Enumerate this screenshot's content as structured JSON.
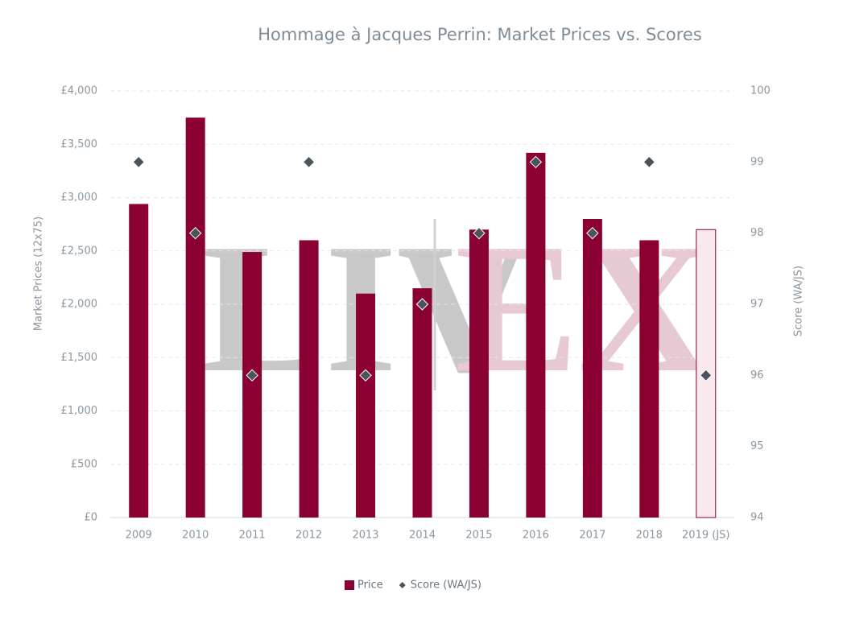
{
  "chart_data": {
    "type": "bar",
    "title": "Hommage à Jacques Perrin: Market Prices vs. Scores",
    "watermark": [
      "LIV",
      "EX"
    ],
    "categories": [
      "2009",
      "2010",
      "2011",
      "2012",
      "2013",
      "2014",
      "2015",
      "2016",
      "2017",
      "2018",
      "2019 (JS)"
    ],
    "ylabel": "Market Prices (12x75)",
    "y2label": "Score (WA/JS)",
    "ylim": [
      0,
      4000
    ],
    "yticks": [
      {
        "value": 0,
        "label": "£0"
      },
      {
        "value": 500,
        "label": "£500"
      },
      {
        "value": 1000,
        "label": "£1,000"
      },
      {
        "value": 1500,
        "label": "£1,500"
      },
      {
        "value": 2000,
        "label": "£2,000"
      },
      {
        "value": 2500,
        "label": "£2,500"
      },
      {
        "value": 3000,
        "label": "£3,000"
      },
      {
        "value": 3500,
        "label": "£3,500"
      },
      {
        "value": 4000,
        "label": "£4,000"
      }
    ],
    "y2lim": [
      94,
      100
    ],
    "y2ticks": [
      94,
      95,
      96,
      97,
      98,
      99,
      100
    ],
    "grid": true,
    "legend": "bottom",
    "series": [
      {
        "name": "Price",
        "type": "bar",
        "color": "#8b0033",
        "colors": [
          "#8b0033",
          "#8b0033",
          "#8b0033",
          "#8b0033",
          "#8b0033",
          "#8b0033",
          "#8b0033",
          "#8b0033",
          "#8b0033",
          "#8b0033",
          "#f9e8ee"
        ],
        "values": [
          2940,
          3750,
          2490,
          2600,
          2100,
          2150,
          2700,
          3420,
          2800,
          2600,
          2700
        ]
      },
      {
        "name": "Score (WA/JS)",
        "type": "scatter",
        "axis": "y2",
        "color": "#4a545c",
        "values": [
          99,
          98,
          96,
          99,
          96,
          97,
          98,
          99,
          98,
          99,
          96
        ]
      }
    ]
  }
}
